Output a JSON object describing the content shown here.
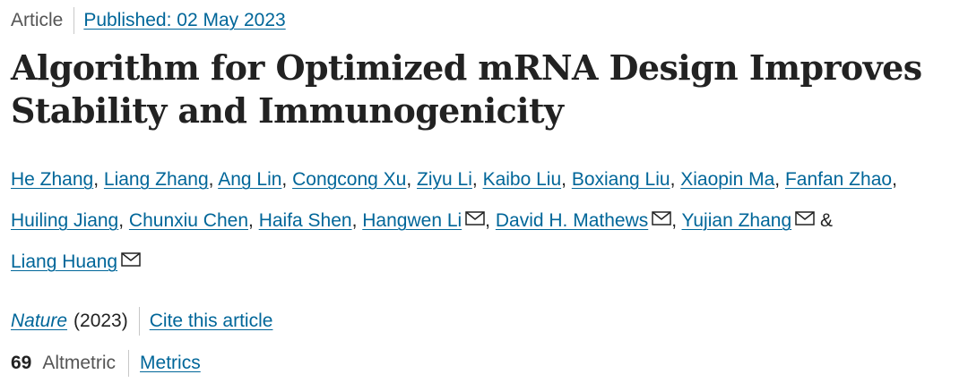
{
  "header": {
    "article_type": "Article",
    "published": "Published: 02 May 2023"
  },
  "title": "Algorithm for Optimized mRNA Design Improves Stability and Immunogenicity",
  "authors": [
    {
      "name": "He Zhang",
      "email": false
    },
    {
      "name": "Liang Zhang",
      "email": false
    },
    {
      "name": "Ang Lin",
      "email": false
    },
    {
      "name": "Congcong Xu",
      "email": false
    },
    {
      "name": "Ziyu Li",
      "email": false
    },
    {
      "name": "Kaibo Liu",
      "email": false
    },
    {
      "name": "Boxiang Liu",
      "email": false
    },
    {
      "name": "Xiaopin Ma",
      "email": false
    },
    {
      "name": "Fanfan Zhao",
      "email": false
    },
    {
      "name": "Huiling Jiang",
      "email": false
    },
    {
      "name": "Chunxiu Chen",
      "email": false
    },
    {
      "name": "Haifa Shen",
      "email": false
    },
    {
      "name": "Hangwen Li",
      "email": true
    },
    {
      "name": "David H. Mathews",
      "email": true
    },
    {
      "name": "Yujian Zhang",
      "email": true
    },
    {
      "name": "Liang Huang",
      "email": true
    }
  ],
  "author_separator": ", ",
  "author_final_joiner": " & ",
  "icons": {
    "email": "mail-icon"
  },
  "journal": {
    "name": "Nature",
    "year": "(2023)",
    "cite_label": "Cite this article"
  },
  "metrics": {
    "altmetric_count": "69",
    "altmetric_label": "Altmetric",
    "metrics_link": "Metrics"
  },
  "colors": {
    "link": "#006699",
    "text": "#222222",
    "muted": "#555555",
    "separator": "#c8c8c8"
  }
}
